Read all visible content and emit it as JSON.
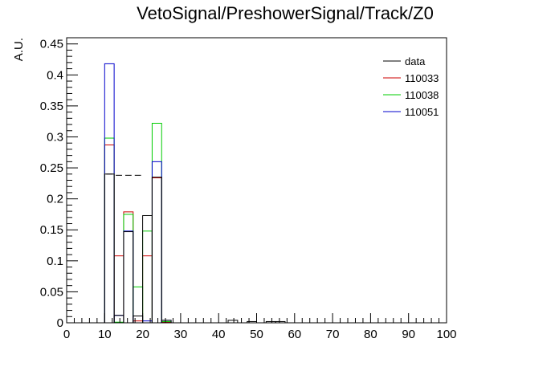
{
  "chart_data": {
    "type": "histogram",
    "title": "VetoSignal/PreshowerSignal/Track/Z0",
    "xlabel": "",
    "ylabel": "A.U.",
    "xlim": [
      0,
      100
    ],
    "ylim": [
      0,
      0.46
    ],
    "xticks": [
      "0",
      "10",
      "20",
      "30",
      "40",
      "50",
      "60",
      "70",
      "80",
      "90",
      "100"
    ],
    "yticks": [
      "0",
      "0.05",
      "0.1",
      "0.15",
      "0.2",
      "0.25",
      "0.3",
      "0.35",
      "0.4",
      "0.45"
    ],
    "bin_width": 2.5,
    "bin_edges_start": 0,
    "legend_position": "top-right",
    "series": [
      {
        "name": "data",
        "color": "#000000",
        "style": "dashed-steps",
        "values": [
          0,
          0,
          0,
          0,
          0.24,
          0.238,
          0.238,
          0.238,
          0,
          0,
          0,
          0,
          0,
          0,
          0,
          0,
          0,
          0,
          0,
          0,
          0,
          0,
          0,
          0,
          0,
          0,
          0,
          0,
          0,
          0,
          0,
          0,
          0,
          0,
          0,
          0,
          0,
          0,
          0,
          0
        ]
      },
      {
        "name": "110033",
        "color": "#cc0000",
        "style": "steps",
        "values": [
          0,
          0,
          0,
          0,
          0.287,
          0.108,
          0.179,
          0.003,
          0.108,
          0.234,
          0.001,
          0,
          0,
          0,
          0,
          0,
          0,
          0,
          0,
          0,
          0,
          0,
          0,
          0,
          0,
          0,
          0,
          0,
          0,
          0,
          0,
          0,
          0,
          0,
          0,
          0,
          0,
          0,
          0,
          0
        ]
      },
      {
        "name": "110038",
        "color": "#00cc00",
        "style": "steps",
        "values": [
          0,
          0,
          0,
          0,
          0.298,
          0.001,
          0.175,
          0.058,
          0.148,
          0.322,
          0.002,
          0,
          0,
          0,
          0,
          0,
          0,
          0,
          0,
          0,
          0,
          0,
          0,
          0,
          0,
          0,
          0,
          0,
          0,
          0,
          0,
          0,
          0,
          0,
          0,
          0,
          0,
          0,
          0,
          0
        ]
      },
      {
        "name": "110051",
        "color": "#0000cc",
        "style": "steps",
        "values": [
          0,
          0,
          0,
          0,
          0.418,
          0.012,
          0.148,
          0.011,
          0.003,
          0.26,
          0.004,
          0,
          0,
          0,
          0,
          0,
          0,
          0,
          0,
          0,
          0,
          0,
          0,
          0,
          0,
          0,
          0,
          0,
          0,
          0,
          0,
          0,
          0,
          0,
          0,
          0,
          0,
          0,
          0,
          0
        ]
      },
      {
        "name": "",
        "color": "#000000",
        "style": "steps",
        "values": [
          0,
          0,
          0,
          0,
          0.24,
          0.012,
          0.147,
          0.011,
          0.173,
          0.235,
          0.004,
          0,
          0,
          0,
          0,
          0,
          0,
          0.004,
          0,
          0.002,
          0,
          0.002,
          0.002,
          0,
          0,
          0,
          0,
          0,
          0,
          0,
          0,
          0,
          0,
          0,
          0,
          0,
          0,
          0,
          0,
          0
        ]
      }
    ]
  }
}
